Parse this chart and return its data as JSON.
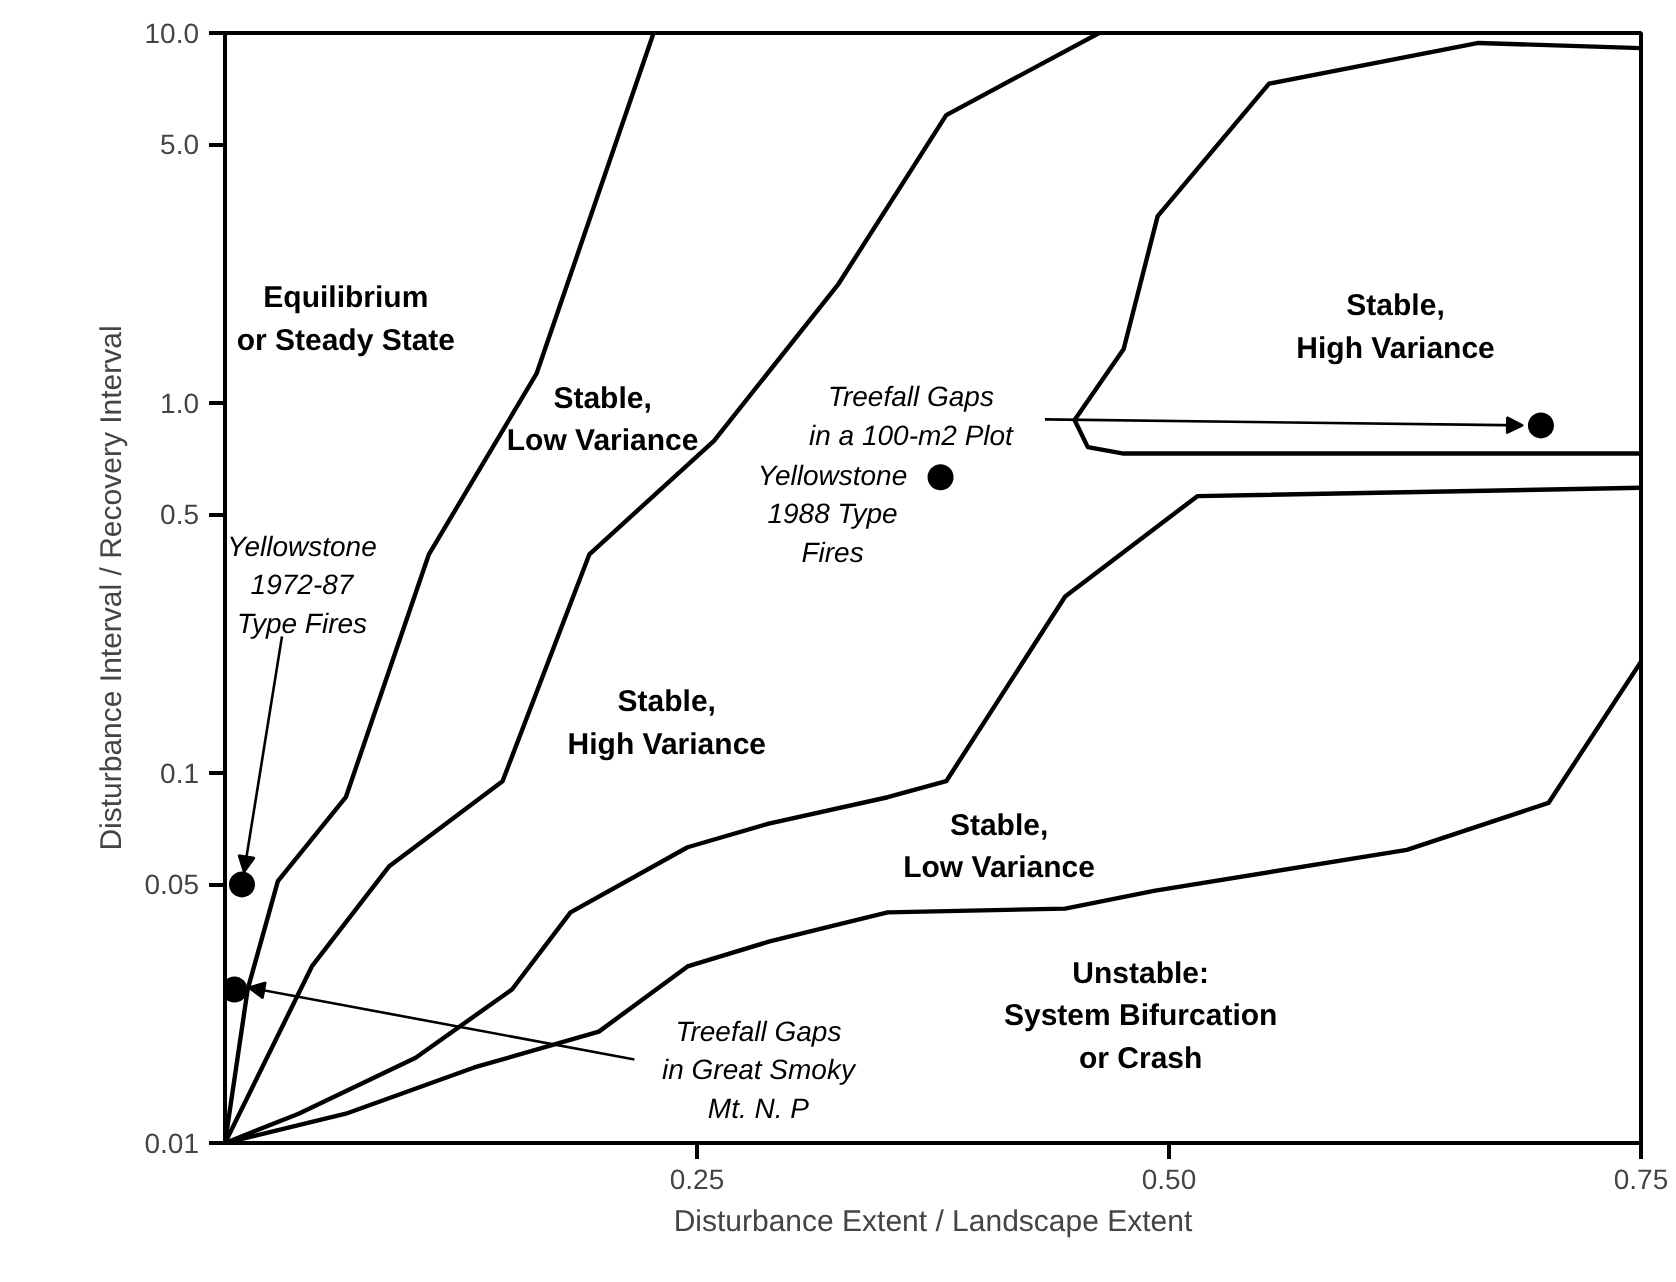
{
  "chart_data": {
    "type": "line",
    "xlabel": "Disturbance Extent / Landscape Extent",
    "ylabel": "Disturbance Interval / Recovery Interval",
    "log": "y",
    "xlim": [
      0,
      0.75
    ],
    "ylim": [
      0.01,
      10
    ],
    "xticks": [
      0.25,
      {
        "value": 0.5,
        "label": "0.50"
      },
      0.75
    ],
    "yticks": [
      0.01,
      0.05,
      0.1,
      0.5,
      {
        "value": 1,
        "label": "1.0"
      },
      {
        "value": 5,
        "label": "5.0"
      },
      {
        "value": 10,
        "label": "10.0"
      }
    ],
    "series": [
      {
        "color": "#000000",
        "x": [
          0,
          0.012,
          0.028,
          0.064,
          0.108,
          0.165,
          0.227
        ],
        "values": [
          0.01,
          0.026,
          0.051,
          0.086,
          0.39,
          1.2,
          10
        ]
      },
      {
        "color": "#000000",
        "x": [
          0,
          0.046,
          0.087,
          0.147,
          0.193,
          0.259,
          0.325,
          0.382,
          0.463
        ],
        "values": [
          0.01,
          0.03,
          0.056,
          0.095,
          0.39,
          0.79,
          2.1,
          6.0,
          10
        ]
      },
      {
        "color": "#000000",
        "x": [
          0.75,
          0.664,
          0.553,
          0.494,
          0.476,
          0.45,
          0.457,
          0.476,
          0.75
        ],
        "values": [
          9.1,
          9.4,
          7.3,
          3.2,
          1.4,
          0.9,
          0.76,
          0.73,
          0.73
        ]
      },
      {
        "color": "#000000",
        "x": [
          0,
          0.039,
          0.101,
          0.152,
          0.183,
          0.245,
          0.288,
          0.351,
          0.382,
          0.445,
          0.515,
          0.75
        ],
        "values": [
          0.01,
          0.012,
          0.017,
          0.026,
          0.042,
          0.063,
          0.073,
          0.086,
          0.095,
          0.3,
          0.56,
          0.59
        ]
      },
      {
        "color": "#000000",
        "x": [
          0,
          0.064,
          0.132,
          0.198,
          0.245,
          0.288,
          0.325,
          0.351,
          0.445,
          0.492,
          0.626,
          0.701,
          0.75
        ],
        "values": [
          0.01,
          0.012,
          0.016,
          0.02,
          0.03,
          0.035,
          0.039,
          0.042,
          0.043,
          0.048,
          0.062,
          0.083,
          0.2
        ]
      },
      {
        "type": "scatter",
        "marker": "circle",
        "color": "#000000",
        "x": [
          0.009,
          0.005,
          0.379,
          0.697
        ],
        "values": [
          0.05,
          0.026,
          0.63,
          0.87
        ]
      }
    ],
    "annotations": [
      "Equilibrium\nor Steady State",
      "Stable,\nLow Variance",
      "Stable,\nHigh Variance",
      "Stable,\nHigh Variance",
      "Stable,\nLow Variance",
      "Unstable:\nSystem Bifurcation\nor Crash",
      {
        "text": "Yellowstone\n1972-87\nType Fires",
        "x": 0.009,
        "y": 0.05
      },
      {
        "text": "Treefall Gaps\nin Great Smoky\nMt. N. P",
        "x": 0.005,
        "y": 0.026
      },
      {
        "text": "Yellowstone\n1988 Type\nFires",
        "x": 0.379,
        "y": 0.63
      },
      {
        "text": "Treefall Gaps\nin a 100-m2 Plot",
        "x": 0.697,
        "y": 0.87
      }
    ]
  }
}
